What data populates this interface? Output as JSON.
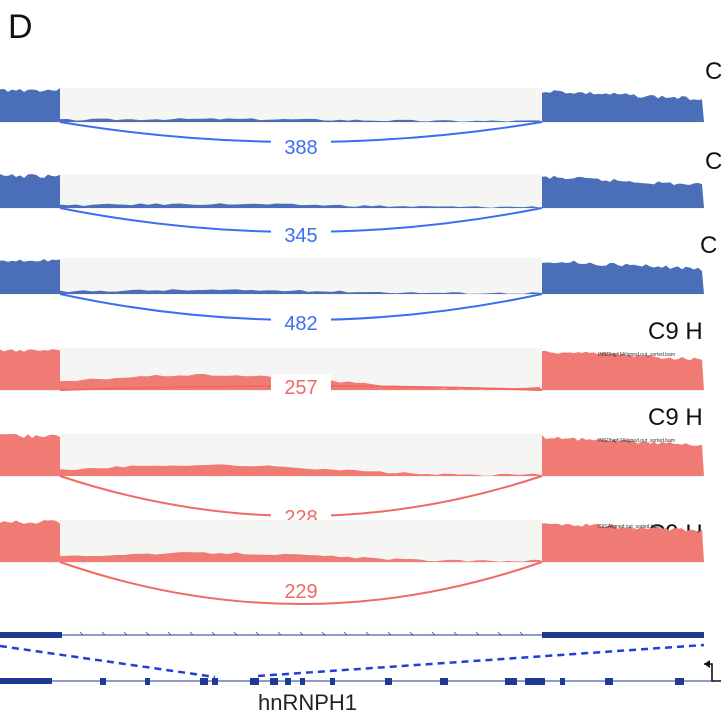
{
  "panel_letter": "D",
  "gene_name": "hnRNPH1",
  "colors": {
    "control": "#4a6fb8",
    "control_arc": "#3b6ef0",
    "c9": "#f07b74",
    "c9_arc": "#f06a64",
    "gene_model": "#1f3a93",
    "intron_bg": "#f5f5f3"
  },
  "tracks": [
    {
      "group": "control",
      "label": "C",
      "junction_reads": "388",
      "file_label": ""
    },
    {
      "group": "control",
      "label": "C",
      "junction_reads": "345",
      "file_label": ""
    },
    {
      "group": "control",
      "label": "C",
      "junction_reads": "482",
      "file_label": ""
    },
    {
      "group": "c9",
      "label": "C9 H",
      "junction_reads": "257",
      "file_label": "INSDhigh1Aligned.out_sorted.bam"
    },
    {
      "group": "c9",
      "label": "C9 H",
      "junction_reads": "228",
      "file_label": "INSDhigh2Aligned.out_sorted.bam"
    },
    {
      "group": "c9",
      "label": "C9 H",
      "junction_reads": "229",
      "file_label": "C9SAligned.out_sorted.bam"
    }
  ]
}
